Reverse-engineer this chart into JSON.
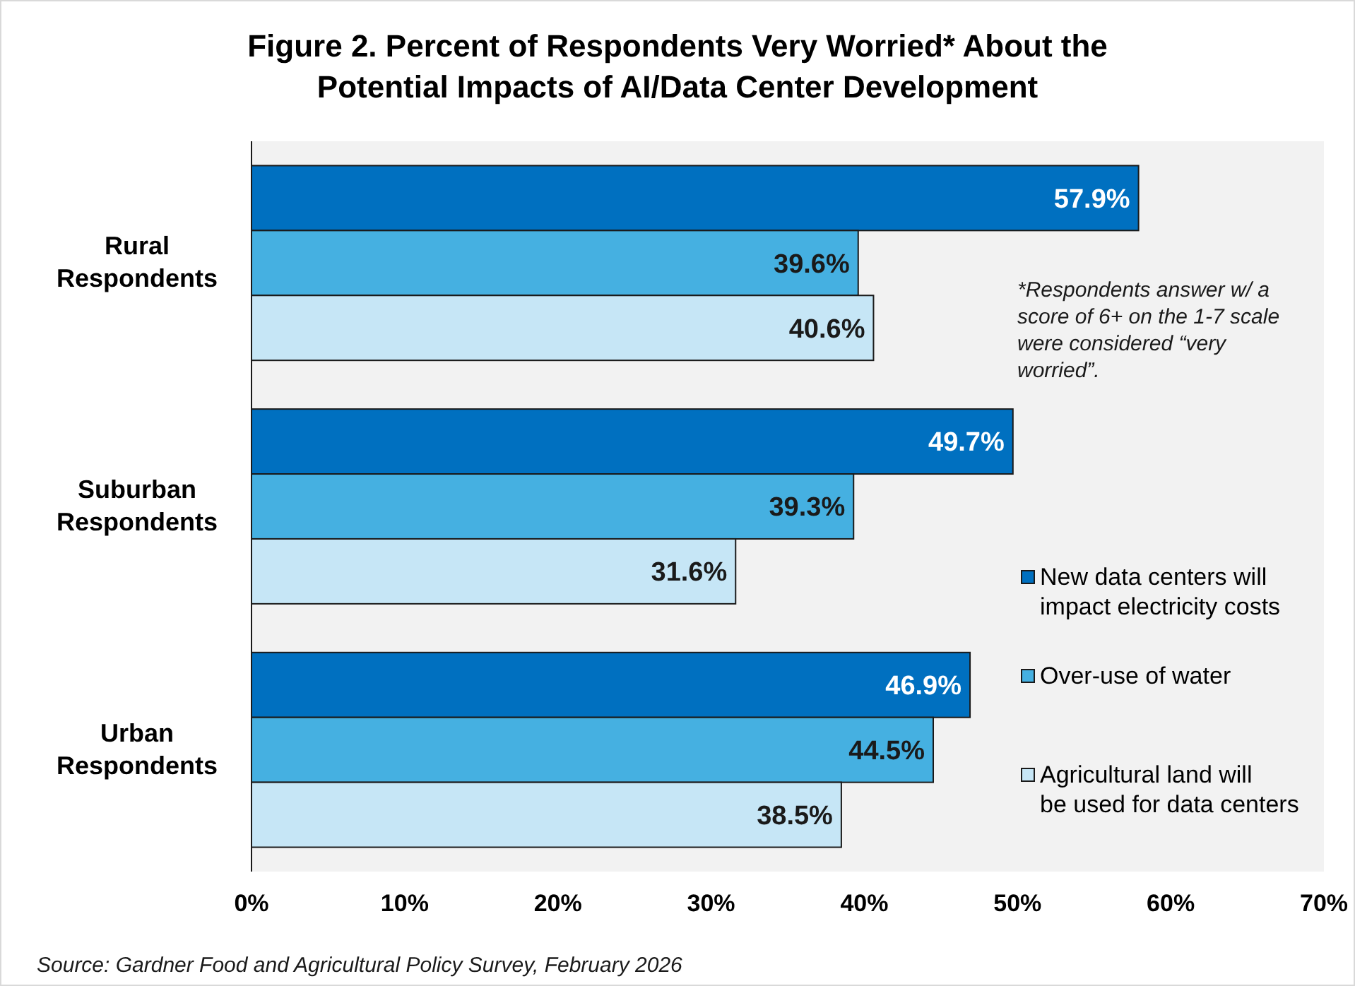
{
  "chart_data": {
    "type": "bar",
    "orientation": "horizontal",
    "title": "Figure 2. Percent of Respondents Very Worried* About the Potential Impacts of AI/Data Center Development",
    "categories": [
      "Rural Respondents",
      "Suburban Respondents",
      "Urban Respondents"
    ],
    "series": [
      {
        "name": "New data centers will impact electricity costs",
        "color": "#0070c0",
        "values": [
          57.9,
          49.7,
          46.9
        ],
        "value_labels": [
          "57.9%",
          "49.7%",
          "46.9%"
        ]
      },
      {
        "name": "Over-use of water",
        "color": "#45b0e1",
        "values": [
          39.6,
          39.3,
          44.5
        ],
        "value_labels": [
          "39.6%",
          "39.3%",
          "44.5%"
        ]
      },
      {
        "name": "Agricultural land will be used for data centers",
        "color": "#c6e6f6",
        "values": [
          40.6,
          31.6,
          38.5
        ],
        "value_labels": [
          "40.6%",
          "31.6%",
          "38.5%"
        ]
      }
    ],
    "xlim": [
      0,
      70
    ],
    "xticks": [
      {
        "value": 0,
        "label": "0%"
      },
      {
        "value": 10,
        "label": "10%"
      },
      {
        "value": 20,
        "label": "20%"
      },
      {
        "value": 30,
        "label": "30%"
      },
      {
        "value": 40,
        "label": "40%"
      },
      {
        "value": 50,
        "label": "50%"
      },
      {
        "value": 60,
        "label": "60%"
      },
      {
        "value": 70,
        "label": "70%"
      }
    ],
    "grid": false,
    "legend": "right",
    "annotations": [
      "*Respondents answer w/ a score of 6+ on the 1-7 scale were considered “very worried”.",
      "Source: Gardner Food and Agricultural Policy Survey, February 2026"
    ]
  }
}
